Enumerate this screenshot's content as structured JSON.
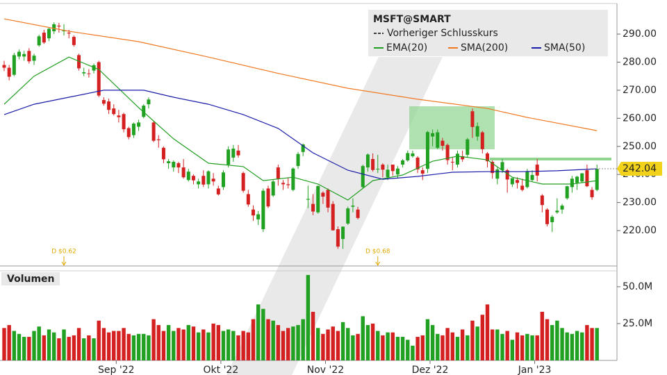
{
  "chart_data": {
    "type": "candlestick",
    "symbol": "MSFT@SMART",
    "prev_close_label": "Vorheriger Schlusskurs",
    "volume_title": "Volumen",
    "up_color": "#21a121",
    "down_color": "#d42020",
    "ylim": [
      207.4,
      300.9
    ],
    "yticks": [
      {
        "value": 220,
        "label": "220.00"
      },
      {
        "value": 230,
        "label": "230.00"
      },
      {
        "value": 240,
        "label": "240.00"
      },
      {
        "value": 250,
        "label": "250.00"
      },
      {
        "value": 260,
        "label": "260.00"
      },
      {
        "value": 270,
        "label": "270.00"
      },
      {
        "value": 280,
        "label": "280.00"
      },
      {
        "value": 290,
        "label": "290.00"
      }
    ],
    "volume_ylim": [
      0,
      60.8
    ],
    "volume_yticks": [
      {
        "value": 25,
        "label": "25.0M"
      },
      {
        "value": 50,
        "label": "50.0M"
      }
    ],
    "last_price": 242.04,
    "categories": [
      null,
      null,
      null,
      null,
      null,
      null,
      null,
      null,
      null,
      null,
      null,
      null,
      null,
      null,
      null,
      null,
      null,
      null,
      null,
      null,
      null,
      null,
      null,
      "Sep '22",
      null,
      null,
      null,
      null,
      null,
      null,
      null,
      null,
      null,
      null,
      null,
      null,
      null,
      null,
      null,
      null,
      null,
      null,
      null,
      null,
      "Okt '22",
      null,
      null,
      null,
      null,
      null,
      null,
      null,
      null,
      null,
      null,
      null,
      null,
      null,
      null,
      null,
      null,
      null,
      null,
      null,
      null,
      "Nov '22",
      null,
      null,
      null,
      null,
      null,
      null,
      null,
      null,
      null,
      null,
      null,
      null,
      null,
      null,
      null,
      null,
      null,
      null,
      null,
      null,
      "Dez '22",
      null,
      null,
      null,
      null,
      null,
      null,
      null,
      null,
      null,
      null,
      null,
      null,
      null,
      null,
      null,
      null,
      null,
      null,
      null,
      null,
      "Jan '23",
      null,
      null,
      null,
      null,
      null,
      null,
      null,
      null,
      null,
      null,
      null,
      null
    ],
    "ohlc": [
      [
        279.0,
        280.5,
        276.8,
        278.0
      ],
      [
        278.0,
        279.0,
        273.5,
        274.8
      ],
      [
        275.5,
        283.3,
        275.0,
        282.5
      ],
      [
        282.0,
        284.5,
        281.0,
        283.7
      ],
      [
        282.0,
        284.0,
        280.5,
        282.9
      ],
      [
        284.0,
        285.0,
        279.5,
        280.3
      ],
      [
        280.5,
        283.0,
        279.0,
        282.3
      ],
      [
        286.0,
        289.8,
        285.5,
        289.2
      ],
      [
        290.5,
        291.5,
        286.5,
        287.0
      ],
      [
        288.5,
        292.5,
        287.5,
        291.9
      ],
      [
        291.0,
        294.2,
        290.0,
        293.5
      ],
      [
        293.0,
        294.0,
        290.5,
        292.7
      ],
      [
        291.0,
        293.5,
        289.5,
        291.3
      ],
      [
        290.5,
        291.5,
        288.5,
        290.2
      ],
      [
        289.0,
        289.5,
        285.5,
        286.1
      ],
      [
        282.5,
        283.0,
        277.0,
        277.8
      ],
      [
        276.0,
        278.0,
        275.0,
        276.4
      ],
      [
        276.0,
        277.5,
        274.5,
        275.8
      ],
      [
        277.0,
        279.5,
        276.0,
        278.9
      ],
      [
        280.0,
        280.5,
        267.5,
        268.1
      ],
      [
        266.5,
        267.5,
        264.5,
        265.2
      ],
      [
        266.0,
        267.0,
        261.5,
        263.0
      ],
      [
        263.5,
        265.0,
        261.0,
        261.5
      ],
      [
        261.0,
        263.0,
        258.5,
        260.4
      ],
      [
        261.5,
        262.0,
        255.0,
        256.1
      ],
      [
        256.5,
        257.0,
        252.5,
        253.3
      ],
      [
        254.0,
        258.5,
        253.0,
        258.1
      ],
      [
        257.0,
        259.5,
        255.5,
        258.5
      ],
      [
        260.5,
        265.0,
        260.0,
        264.5
      ],
      [
        265.0,
        267.5,
        263.5,
        266.7
      ],
      [
        258.5,
        259.0,
        251.5,
        252.0
      ],
      [
        252.5,
        254.0,
        249.5,
        252.2
      ],
      [
        249.5,
        250.0,
        244.0,
        245.4
      ],
      [
        244.0,
        245.5,
        242.0,
        244.7
      ],
      [
        242.5,
        245.0,
        241.0,
        244.5
      ],
      [
        244.0,
        244.5,
        240.5,
        242.5
      ],
      [
        242.5,
        245.5,
        238.5,
        239.0
      ],
      [
        238.0,
        242.0,
        237.5,
        241.0
      ],
      [
        239.5,
        240.0,
        236.5,
        237.9
      ],
      [
        236.5,
        238.5,
        235.0,
        237.5
      ],
      [
        239.5,
        241.5,
        235.5,
        236.4
      ],
      [
        236.5,
        241.5,
        235.0,
        241.1
      ],
      [
        238.5,
        240.5,
        236.0,
        237.5
      ],
      [
        235.0,
        236.0,
        232.5,
        232.9
      ],
      [
        235.5,
        241.5,
        234.5,
        240.7
      ],
      [
        243.5,
        250.0,
        242.5,
        248.9
      ],
      [
        246.0,
        250.5,
        244.5,
        249.2
      ],
      [
        248.5,
        250.5,
        246.0,
        246.8
      ],
      [
        240.5,
        241.0,
        233.5,
        234.2
      ],
      [
        233.0,
        234.5,
        228.5,
        229.3
      ],
      [
        227.5,
        229.0,
        223.5,
        225.4
      ],
      [
        224.0,
        227.0,
        222.0,
        225.8
      ],
      [
        220.5,
        235.0,
        219.5,
        234.2
      ],
      [
        235.0,
        236.0,
        228.0,
        228.6
      ],
      [
        232.5,
        238.0,
        232.0,
        237.5
      ],
      [
        242.5,
        243.5,
        236.0,
        238.5
      ],
      [
        237.0,
        238.0,
        234.5,
        236.5
      ],
      [
        236.5,
        239.0,
        235.0,
        236.2
      ],
      [
        234.5,
        242.5,
        234.0,
        242.1
      ],
      [
        243.0,
        248.0,
        242.0,
        247.3
      ],
      [
        248.0,
        251.0,
        246.5,
        250.7
      ],
      [
        231.0,
        236.0,
        228.0,
        231.3
      ],
      [
        229.5,
        233.0,
        225.5,
        226.8
      ],
      [
        226.5,
        236.0,
        226.0,
        235.9
      ],
      [
        233.5,
        234.0,
        229.5,
        232.1
      ],
      [
        234.5,
        235.0,
        226.5,
        228.2
      ],
      [
        229.5,
        230.5,
        220.0,
        220.1
      ],
      [
        220.5,
        221.5,
        213.5,
        214.3
      ],
      [
        217.0,
        221.5,
        213.5,
        221.4
      ],
      [
        222.5,
        228.5,
        222.0,
        227.9
      ],
      [
        228.5,
        231.5,
        226.5,
        228.9
      ],
      [
        227.5,
        228.5,
        224.0,
        224.5
      ],
      [
        235.5,
        243.5,
        235.0,
        243.0
      ],
      [
        242.5,
        247.5,
        241.0,
        247.1
      ],
      [
        245.5,
        247.5,
        241.0,
        241.6
      ],
      [
        242.0,
        247.0,
        240.5,
        242.0
      ],
      [
        243.5,
        244.0,
        239.0,
        241.7
      ],
      [
        239.0,
        243.5,
        238.0,
        241.7
      ],
      [
        243.5,
        243.5,
        239.5,
        241.2
      ],
      [
        240.0,
        243.0,
        238.5,
        242.1
      ],
      [
        243.5,
        245.5,
        242.5,
        245.0
      ],
      [
        245.0,
        248.5,
        244.5,
        247.6
      ],
      [
        246.5,
        248.5,
        246.0,
        247.5
      ],
      [
        246.0,
        246.5,
        240.5,
        241.8
      ],
      [
        241.5,
        242.5,
        238.0,
        240.3
      ],
      [
        242.0,
        255.5,
        240.5,
        255.1
      ],
      [
        253.5,
        256.0,
        250.0,
        254.7
      ],
      [
        249.5,
        256.0,
        249.0,
        255.0
      ],
      [
        252.0,
        253.0,
        248.5,
        250.2
      ],
      [
        250.5,
        251.0,
        243.5,
        245.1
      ],
      [
        244.5,
        246.0,
        241.5,
        244.4
      ],
      [
        243.5,
        248.5,
        242.5,
        247.4
      ],
      [
        246.5,
        248.5,
        244.5,
        245.4
      ],
      [
        247.0,
        253.0,
        246.0,
        252.5
      ],
      [
        262.5,
        263.5,
        253.0,
        256.9
      ],
      [
        253.5,
        258.5,
        252.0,
        257.2
      ],
      [
        255.0,
        255.5,
        247.5,
        249.0
      ],
      [
        247.5,
        248.0,
        242.5,
        244.7
      ],
      [
        244.5,
        245.0,
        238.5,
        240.5
      ],
      [
        238.5,
        242.5,
        236.5,
        241.8
      ],
      [
        241.5,
        245.5,
        240.5,
        244.4
      ],
      [
        241.5,
        242.0,
        233.5,
        238.2
      ],
      [
        236.5,
        238.5,
        235.5,
        238.7
      ],
      [
        238.0,
        239.0,
        235.0,
        237.0
      ],
      [
        236.0,
        238.5,
        234.0,
        234.5
      ],
      [
        235.5,
        242.0,
        235.0,
        241.0
      ],
      [
        238.0,
        241.5,
        237.5,
        239.8
      ],
      [
        243.5,
        245.5,
        237.5,
        239.6
      ],
      [
        232.5,
        233.0,
        226.5,
        229.1
      ],
      [
        227.5,
        228.0,
        221.5,
        222.3
      ],
      [
        223.0,
        225.5,
        219.5,
        224.9
      ],
      [
        226.5,
        231.5,
        226.0,
        227.1
      ],
      [
        227.5,
        229.5,
        226.0,
        228.9
      ],
      [
        231.5,
        236.0,
        231.0,
        235.8
      ],
      [
        235.5,
        239.5,
        233.5,
        238.5
      ],
      [
        237.0,
        239.5,
        234.5,
        239.2
      ],
      [
        237.5,
        240.5,
        237.0,
        240.4
      ],
      [
        241.5,
        243.5,
        235.5,
        235.8
      ],
      [
        234.5,
        235.5,
        231.0,
        231.9
      ],
      [
        234.5,
        243.5,
        234.0,
        242.0
      ]
    ],
    "volume": [
      22,
      24,
      20,
      18,
      16,
      16,
      20,
      23,
      17,
      21,
      19,
      15,
      21,
      16,
      17,
      22,
      15,
      17,
      15,
      27,
      22,
      19,
      20,
      20,
      22,
      18,
      17,
      18,
      18,
      17,
      28,
      24,
      20,
      24,
      20,
      22,
      21,
      24,
      23,
      19,
      21,
      19,
      25,
      24,
      20,
      21,
      20,
      17,
      20,
      19,
      28,
      38,
      35,
      28,
      27,
      24,
      20,
      22,
      23,
      24,
      28,
      58,
      33,
      22,
      18,
      21,
      23,
      20,
      26,
      22,
      17,
      18,
      30,
      24,
      25,
      20,
      17,
      19,
      19,
      16,
      16,
      14,
      10,
      16,
      17,
      28,
      24,
      18,
      17,
      22,
      19,
      16,
      21,
      17,
      27,
      23,
      31,
      38,
      21,
      21,
      18,
      20,
      14,
      19,
      17,
      18,
      17,
      17,
      33,
      28,
      24,
      27,
      22,
      19,
      18,
      20,
      19,
      24,
      22,
      22
    ],
    "series": [
      {
        "name": "EMA(20)",
        "color": "#1f9e1f",
        "x": [
          0,
          6,
          13,
          19,
          27,
          34,
          41,
          48,
          52,
          58,
          63,
          69,
          74,
          80,
          86,
          91,
          97,
          102,
          108,
          114,
          119
        ],
        "values": [
          265,
          275,
          281.8,
          277.4,
          263.8,
          252.7,
          244,
          242.8,
          237.8,
          239,
          236.6,
          230.9,
          237.8,
          239.8,
          244.7,
          246.5,
          245.2,
          239,
          236.6,
          236.6,
          237.8
        ]
      },
      {
        "name": "SMA(200)",
        "color": "#f07820",
        "x": [
          0,
          13,
          27,
          41,
          55,
          69,
          83,
          97,
          105,
          119
        ],
        "values": [
          295.4,
          291,
          287.3,
          281.8,
          276,
          270.7,
          266.8,
          263.5,
          260.3,
          255.6
        ]
      },
      {
        "name": "SMA(50)",
        "color": "#1a1aa8",
        "x": [
          0,
          6,
          13,
          20,
          28,
          34,
          41,
          48,
          55,
          62,
          69,
          76,
          83,
          90,
          97,
          104,
          111,
          119
        ],
        "values": [
          261.3,
          265,
          267.5,
          270,
          270,
          267.5,
          265,
          261.3,
          256.4,
          247.7,
          241.5,
          238.3,
          239.3,
          240.8,
          241,
          241,
          241.3,
          242
        ]
      }
    ],
    "annotations": [
      {
        "label": "D $0.62",
        "index": 12
      },
      {
        "label": "D $0.68",
        "index": 75
      }
    ]
  }
}
